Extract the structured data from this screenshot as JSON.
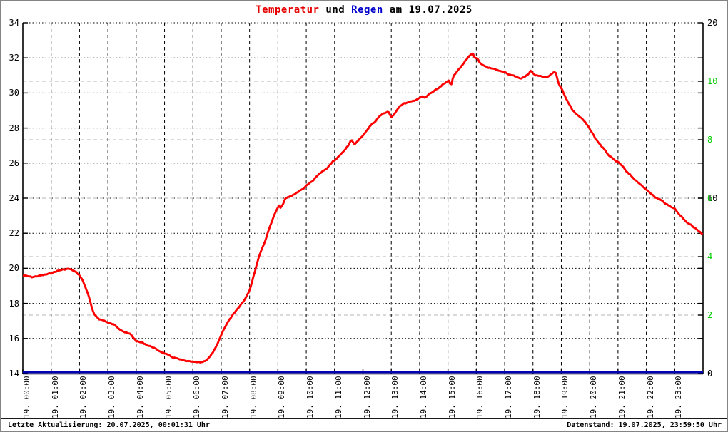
{
  "title": {
    "temp": "Temperatur",
    "mid": " und ",
    "rain": "Regen",
    "suffix": " am 19.07.2025"
  },
  "footer": {
    "left": "Letzte Aktualisierung: 20.07.2025, 00:01:31 Uhr",
    "right": "Datenstand: 19.07.2025, 23:59:50 Uhr"
  },
  "colors": {
    "temperature": "#ff0000",
    "rain": "#0000b4",
    "title_temp": "#e60000",
    "title_rain": "#0000cc",
    "right_axis_green": "#00cc00",
    "grid_black": "#000000",
    "grid_gray": "#b4b4b4",
    "axis": "#000000",
    "border": "#848484"
  },
  "chart_data": {
    "type": "line",
    "title": "Temperatur und Regen am 19.07.2025",
    "grid": true,
    "legend_position": "none",
    "x_axis": {
      "unit": "hour of 19.07.2025",
      "range": [
        0,
        24
      ],
      "tick_hours": [
        0,
        1,
        2,
        3,
        4,
        5,
        6,
        7,
        8,
        9,
        10,
        11,
        12,
        13,
        14,
        15,
        16,
        17,
        18,
        19,
        20,
        21,
        22,
        23
      ],
      "labels": [
        "19. 00:00",
        "19. 01:00",
        "19. 02:00",
        "19. 03:00",
        "19. 04:00",
        "19. 05:00",
        "19. 06:00",
        "19. 07:00",
        "19. 08:00",
        "19. 09:00",
        "19. 10:00",
        "19. 11:00",
        "19. 12:00",
        "19. 13:00",
        "19. 14:00",
        "19. 15:00",
        "19. 16:00",
        "19. 17:00",
        "19. 18:00",
        "19. 19:00",
        "19. 20:00",
        "19. 21:00",
        "19. 22:00",
        "19. 23:00"
      ]
    },
    "y_axis_left": {
      "name": "Temperatur",
      "min": 14,
      "max": 34,
      "tick_step": 2,
      "tick_labels": [
        "34",
        "32",
        "30",
        "28",
        "26",
        "24",
        "22",
        "20",
        "18",
        "16",
        "14"
      ]
    },
    "y_axis_right_black": {
      "min": 0,
      "max": 20,
      "labels": [
        {
          "text": "20",
          "value": 20
        },
        {
          "text": "10",
          "value": 10
        },
        {
          "text": "0",
          "value": 0
        }
      ]
    },
    "y_axis_right_green": {
      "min": 0,
      "max": 12,
      "labels": [
        {
          "text": "10",
          "value": 10
        },
        {
          "text": "8",
          "value": 8
        },
        {
          "text": "6",
          "value": 6
        },
        {
          "text": "4",
          "value": 4
        },
        {
          "text": "2",
          "value": 2
        }
      ]
    },
    "series": [
      {
        "name": "Temperatur",
        "color": "#ff0000",
        "axis": "left",
        "points": [
          [
            0.0,
            19.6
          ],
          [
            0.17,
            19.55
          ],
          [
            0.33,
            19.5
          ],
          [
            0.5,
            19.55
          ],
          [
            0.67,
            19.6
          ],
          [
            0.83,
            19.65
          ],
          [
            1.0,
            19.72
          ],
          [
            1.17,
            19.82
          ],
          [
            1.33,
            19.9
          ],
          [
            1.5,
            19.95
          ],
          [
            1.62,
            19.97
          ],
          [
            1.75,
            19.9
          ],
          [
            1.9,
            19.75
          ],
          [
            2.0,
            19.6
          ],
          [
            2.1,
            19.35
          ],
          [
            2.2,
            18.95
          ],
          [
            2.3,
            18.55
          ],
          [
            2.4,
            17.95
          ],
          [
            2.5,
            17.4
          ],
          [
            2.6,
            17.25
          ],
          [
            2.7,
            17.1
          ],
          [
            2.8,
            17.05
          ],
          [
            2.9,
            17.0
          ],
          [
            3.0,
            16.9
          ],
          [
            3.1,
            16.85
          ],
          [
            3.2,
            16.8
          ],
          [
            3.3,
            16.7
          ],
          [
            3.4,
            16.55
          ],
          [
            3.5,
            16.45
          ],
          [
            3.6,
            16.35
          ],
          [
            3.7,
            16.3
          ],
          [
            3.8,
            16.25
          ],
          [
            3.9,
            16.05
          ],
          [
            4.0,
            15.85
          ],
          [
            4.1,
            15.8
          ],
          [
            4.2,
            15.77
          ],
          [
            4.3,
            15.7
          ],
          [
            4.4,
            15.6
          ],
          [
            4.5,
            15.55
          ],
          [
            4.6,
            15.5
          ],
          [
            4.7,
            15.38
          ],
          [
            4.8,
            15.3
          ],
          [
            4.9,
            15.22
          ],
          [
            5.0,
            15.15
          ],
          [
            5.1,
            15.07
          ],
          [
            5.2,
            15.0
          ],
          [
            5.3,
            14.92
          ],
          [
            5.4,
            14.87
          ],
          [
            5.5,
            14.82
          ],
          [
            5.6,
            14.78
          ],
          [
            5.7,
            14.73
          ],
          [
            5.8,
            14.7
          ],
          [
            5.9,
            14.68
          ],
          [
            6.0,
            14.67
          ],
          [
            6.1,
            14.65
          ],
          [
            6.2,
            14.64
          ],
          [
            6.3,
            14.65
          ],
          [
            6.4,
            14.7
          ],
          [
            6.5,
            14.8
          ],
          [
            6.6,
            14.95
          ],
          [
            6.7,
            15.2
          ],
          [
            6.8,
            15.45
          ],
          [
            6.9,
            15.8
          ],
          [
            7.0,
            16.2
          ],
          [
            7.1,
            16.55
          ],
          [
            7.2,
            16.85
          ],
          [
            7.3,
            17.1
          ],
          [
            7.4,
            17.35
          ],
          [
            7.5,
            17.55
          ],
          [
            7.6,
            17.75
          ],
          [
            7.7,
            17.95
          ],
          [
            7.8,
            18.15
          ],
          [
            7.9,
            18.45
          ],
          [
            8.0,
            18.75
          ],
          [
            8.1,
            19.3
          ],
          [
            8.2,
            19.9
          ],
          [
            8.3,
            20.5
          ],
          [
            8.4,
            21.0
          ],
          [
            8.5,
            21.35
          ],
          [
            8.6,
            21.8
          ],
          [
            8.7,
            22.3
          ],
          [
            8.8,
            22.75
          ],
          [
            8.9,
            23.15
          ],
          [
            9.0,
            23.45
          ],
          [
            9.05,
            23.6
          ],
          [
            9.1,
            23.4
          ],
          [
            9.2,
            23.75
          ],
          [
            9.25,
            23.95
          ],
          [
            9.35,
            24.05
          ],
          [
            9.5,
            24.15
          ],
          [
            9.65,
            24.3
          ],
          [
            9.75,
            24.4
          ],
          [
            9.9,
            24.55
          ],
          [
            10.0,
            24.7
          ],
          [
            10.15,
            24.9
          ],
          [
            10.25,
            25.0
          ],
          [
            10.4,
            25.3
          ],
          [
            10.5,
            25.45
          ],
          [
            10.65,
            25.6
          ],
          [
            10.75,
            25.7
          ],
          [
            10.85,
            25.95
          ],
          [
            10.95,
            26.1
          ],
          [
            11.05,
            26.2
          ],
          [
            11.15,
            26.4
          ],
          [
            11.25,
            26.55
          ],
          [
            11.4,
            26.85
          ],
          [
            11.5,
            27.05
          ],
          [
            11.55,
            27.25
          ],
          [
            11.6,
            27.3
          ],
          [
            11.7,
            27.05
          ],
          [
            11.8,
            27.25
          ],
          [
            11.9,
            27.4
          ],
          [
            12.0,
            27.55
          ],
          [
            12.1,
            27.8
          ],
          [
            12.2,
            28.0
          ],
          [
            12.3,
            28.2
          ],
          [
            12.45,
            28.4
          ],
          [
            12.6,
            28.7
          ],
          [
            12.75,
            28.85
          ],
          [
            12.9,
            28.95
          ],
          [
            13.0,
            28.6
          ],
          [
            13.1,
            28.75
          ],
          [
            13.2,
            29.05
          ],
          [
            13.3,
            29.25
          ],
          [
            13.45,
            29.4
          ],
          [
            13.6,
            29.45
          ],
          [
            13.7,
            29.5
          ],
          [
            13.85,
            29.6
          ],
          [
            14.0,
            29.7
          ],
          [
            14.1,
            29.8
          ],
          [
            14.2,
            29.7
          ],
          [
            14.3,
            29.9
          ],
          [
            14.45,
            30.05
          ],
          [
            14.6,
            30.2
          ],
          [
            14.7,
            30.3
          ],
          [
            14.8,
            30.45
          ],
          [
            14.9,
            30.55
          ],
          [
            15.0,
            30.7
          ],
          [
            15.05,
            30.75
          ],
          [
            15.1,
            30.35
          ],
          [
            15.2,
            31.0
          ],
          [
            15.3,
            31.2
          ],
          [
            15.4,
            31.4
          ],
          [
            15.5,
            31.55
          ],
          [
            15.6,
            31.8
          ],
          [
            15.7,
            32.0
          ],
          [
            15.8,
            32.2
          ],
          [
            15.87,
            32.27
          ],
          [
            15.95,
            32.0
          ],
          [
            16.05,
            31.95
          ],
          [
            16.1,
            31.75
          ],
          [
            16.2,
            31.6
          ],
          [
            16.35,
            31.5
          ],
          [
            16.5,
            31.4
          ],
          [
            16.65,
            31.35
          ],
          [
            16.8,
            31.25
          ],
          [
            17.0,
            31.2
          ],
          [
            17.15,
            31.05
          ],
          [
            17.3,
            31.0
          ],
          [
            17.45,
            30.9
          ],
          [
            17.55,
            30.82
          ],
          [
            17.7,
            30.9
          ],
          [
            17.85,
            31.1
          ],
          [
            17.93,
            31.3
          ],
          [
            18.0,
            31.1
          ],
          [
            18.1,
            31.0
          ],
          [
            18.25,
            30.95
          ],
          [
            18.4,
            30.92
          ],
          [
            18.5,
            30.9
          ],
          [
            18.6,
            31.0
          ],
          [
            18.7,
            31.15
          ],
          [
            18.8,
            31.22
          ],
          [
            18.87,
            30.7
          ],
          [
            18.95,
            30.4
          ],
          [
            19.0,
            30.3
          ],
          [
            19.1,
            29.9
          ],
          [
            19.2,
            29.6
          ],
          [
            19.3,
            29.3
          ],
          [
            19.4,
            29.0
          ],
          [
            19.5,
            28.85
          ],
          [
            19.6,
            28.7
          ],
          [
            19.75,
            28.5
          ],
          [
            19.9,
            28.2
          ],
          [
            20.0,
            27.95
          ],
          [
            20.1,
            27.7
          ],
          [
            20.2,
            27.4
          ],
          [
            20.3,
            27.2
          ],
          [
            20.4,
            27.0
          ],
          [
            20.55,
            26.7
          ],
          [
            20.7,
            26.4
          ],
          [
            20.85,
            26.2
          ],
          [
            21.0,
            26.05
          ],
          [
            21.15,
            25.85
          ],
          [
            21.3,
            25.5
          ],
          [
            21.45,
            25.3
          ],
          [
            21.6,
            25.05
          ],
          [
            21.75,
            24.85
          ],
          [
            21.9,
            24.6
          ],
          [
            22.0,
            24.5
          ],
          [
            22.15,
            24.3
          ],
          [
            22.3,
            24.05
          ],
          [
            22.45,
            23.95
          ],
          [
            22.6,
            23.8
          ],
          [
            22.75,
            23.6
          ],
          [
            22.9,
            23.5
          ],
          [
            23.0,
            23.4
          ],
          [
            23.15,
            23.1
          ],
          [
            23.3,
            22.85
          ],
          [
            23.45,
            22.6
          ],
          [
            23.6,
            22.45
          ],
          [
            23.75,
            22.25
          ],
          [
            23.9,
            22.05
          ],
          [
            24.0,
            21.9
          ]
        ]
      },
      {
        "name": "Regen",
        "color": "#0000b4",
        "axis": "right_black",
        "points": [
          [
            0,
            0
          ],
          [
            24,
            0
          ]
        ]
      }
    ]
  }
}
